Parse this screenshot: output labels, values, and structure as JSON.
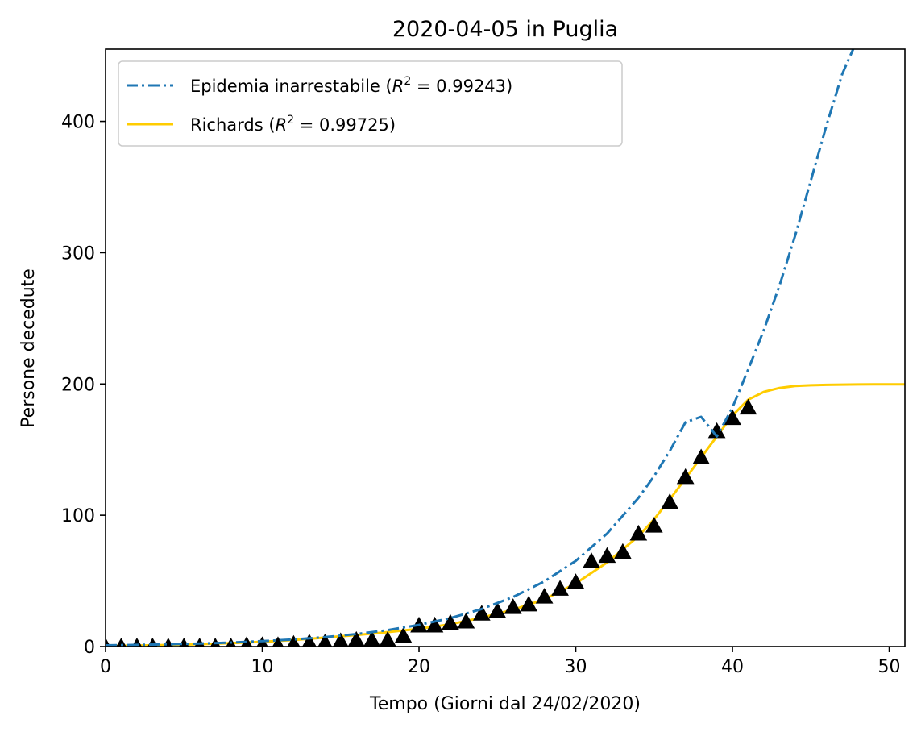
{
  "chart_data": {
    "type": "line",
    "title": "2020-04-05 in Puglia",
    "xlabel": "Tempo (Giorni dal 24/02/2020)",
    "ylabel": "Persone decedute",
    "xlim": [
      0,
      51
    ],
    "ylim": [
      0,
      455
    ],
    "xticks": [
      0,
      10,
      20,
      30,
      40,
      50
    ],
    "yticks": [
      0,
      100,
      200,
      300,
      400
    ],
    "grid": false,
    "legend_position": "top-left",
    "series": [
      {
        "name": "Epidemia inarrestabile",
        "r2": "0.99243",
        "style": "dashdot",
        "color": "#1f77b4",
        "x": [
          0,
          2,
          4,
          6,
          8,
          10,
          12,
          14,
          16,
          18,
          20,
          22,
          24,
          26,
          28,
          30,
          32,
          34,
          35,
          36,
          37,
          38,
          39,
          40,
          41,
          42,
          43,
          44,
          45,
          46,
          47,
          47.7
        ],
        "y": [
          0.9,
          1.3,
          1.7,
          2.3,
          3.1,
          4.1,
          5.4,
          7.2,
          9.5,
          12.5,
          16.5,
          21.7,
          28.6,
          37.7,
          49.6,
          65.3,
          86,
          113.2,
          129.8,
          148.9,
          170.8,
          175,
          160,
          182,
          211,
          241,
          275,
          313,
          355,
          397,
          436,
          455
        ]
      },
      {
        "name": "Richards",
        "r2": "0.99725",
        "style": "solid",
        "color": "#ffcc00",
        "x": [
          0,
          2,
          4,
          6,
          8,
          10,
          12,
          14,
          16,
          18,
          20,
          22,
          24,
          26,
          28,
          30,
          32,
          34,
          35,
          36,
          37,
          38,
          39,
          40,
          41,
          42,
          43,
          44,
          45,
          46,
          47,
          48,
          49,
          50,
          51
        ],
        "y": [
          0.5,
          0.8,
          1.2,
          1.8,
          2.6,
          3.6,
          5,
          6.8,
          8.8,
          11,
          13.5,
          17,
          22,
          28,
          36,
          48,
          64,
          84,
          97,
          112,
          128,
          144,
          160,
          176,
          188,
          194,
          197,
          198.5,
          199,
          199.3,
          199.5,
          199.6,
          199.7,
          199.7,
          199.7
        ]
      },
      {
        "name": "",
        "style": "markers",
        "marker": "triangle",
        "color": "#000000",
        "x": [
          0,
          1,
          2,
          3,
          4,
          5,
          6,
          7,
          8,
          9,
          10,
          11,
          12,
          13,
          14,
          15,
          16,
          17,
          18,
          19,
          20,
          21,
          22,
          23,
          24,
          25,
          26,
          27,
          28,
          29,
          30,
          31,
          32,
          33,
          34,
          35,
          36,
          37,
          38,
          39,
          40,
          41
        ],
        "y": [
          0,
          0,
          0,
          0,
          0,
          0,
          0,
          0,
          0,
          1,
          1,
          1,
          2,
          3,
          3,
          4,
          5,
          5,
          5,
          8,
          16,
          16,
          18,
          19,
          25,
          27,
          30,
          32,
          38,
          44,
          49,
          65,
          69,
          72,
          86,
          92,
          110,
          129,
          144,
          164,
          174,
          182
        ]
      }
    ]
  }
}
